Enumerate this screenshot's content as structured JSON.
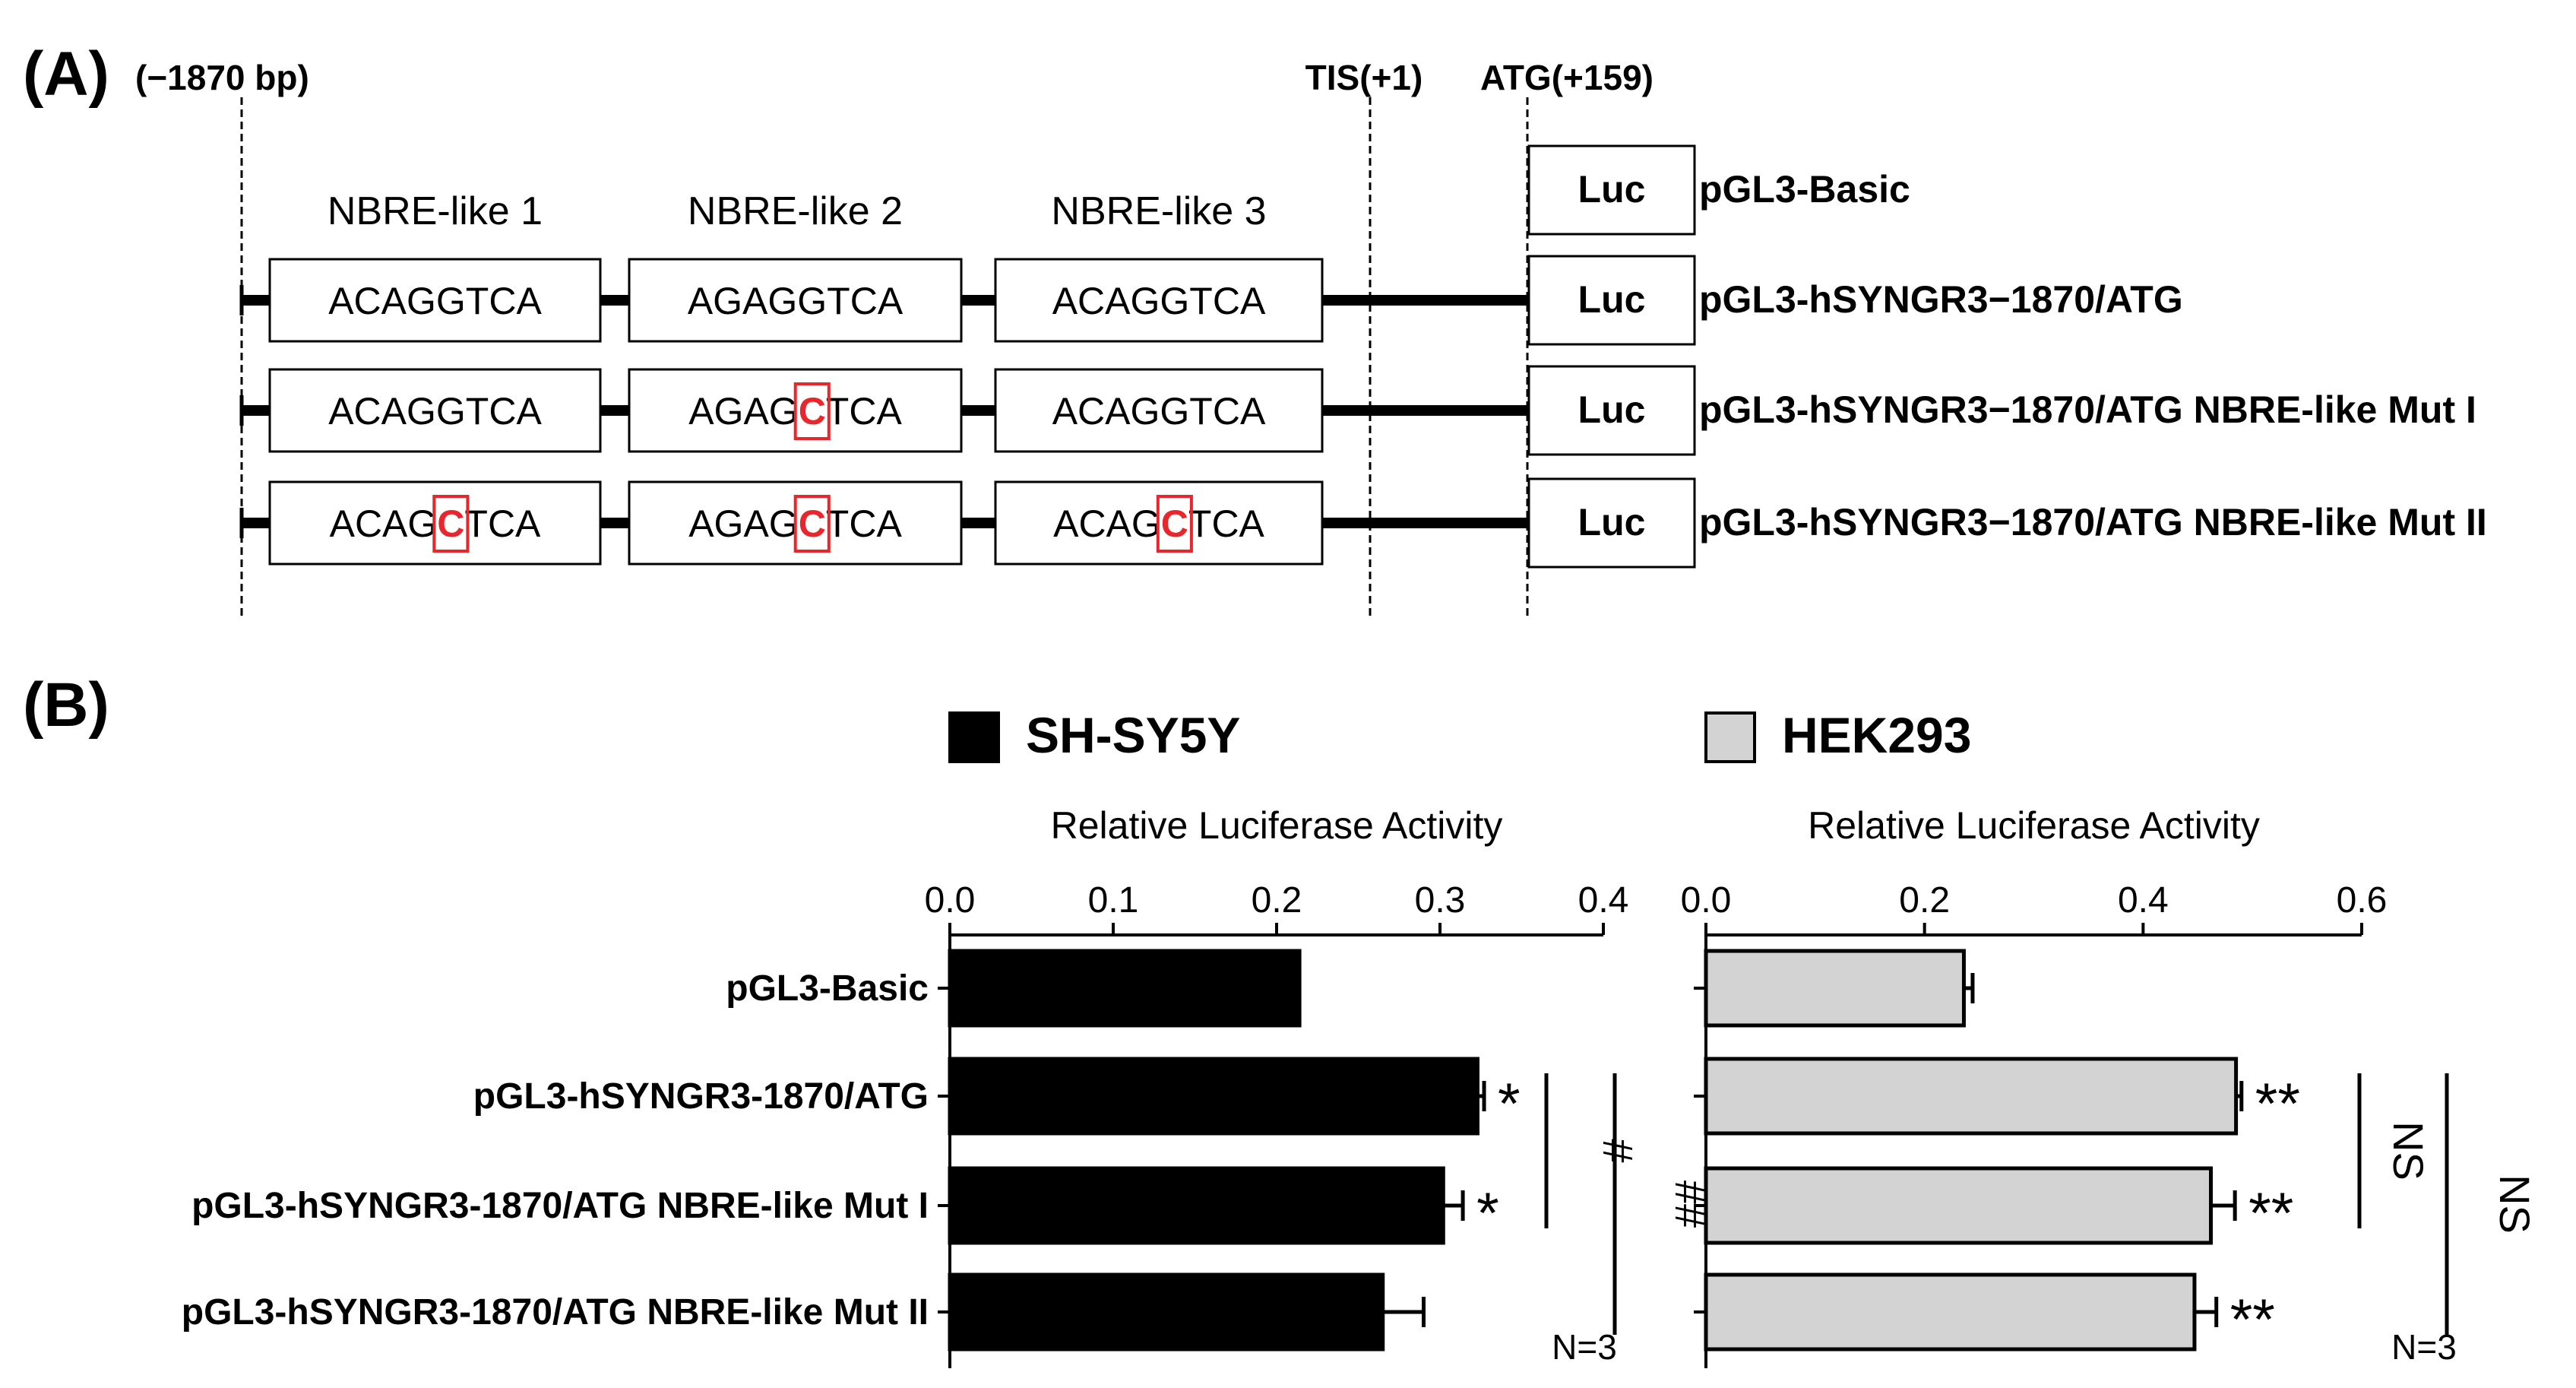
{
  "panel_a": {
    "label": "(A)",
    "pos_start": "(−1870 bp)",
    "tis": "TIS(+1)",
    "atg": "ATG(+159)",
    "nbre_headers": [
      "NBRE-like 1",
      "NBRE-like 2",
      "NBRE-like 3"
    ],
    "luc": "Luc",
    "constructs": [
      {
        "name": "pGL3-Basic",
        "sites": []
      },
      {
        "name": "pGL3-hSYNGR3−1870/ATG",
        "sites": [
          {
            "pre": "ACAGGTCA",
            "mut": "",
            "post": "",
            "mutated": false
          },
          {
            "pre": "AGAGGTCA",
            "mut": "",
            "post": "",
            "mutated": false
          },
          {
            "pre": "ACAGGTCA",
            "mut": "",
            "post": "",
            "mutated": false
          }
        ]
      },
      {
        "name": "pGL3-hSYNGR3−1870/ATG NBRE-like Mut I",
        "sites": [
          {
            "pre": "ACAGGTCA",
            "mut": "",
            "post": "",
            "mutated": false
          },
          {
            "pre": "AGAG",
            "mut": "C",
            "post": "TCA",
            "mutated": true
          },
          {
            "pre": "ACAGGTCA",
            "mut": "",
            "post": "",
            "mutated": false
          }
        ]
      },
      {
        "name": "pGL3-hSYNGR3−1870/ATG NBRE-like Mut II",
        "sites": [
          {
            "pre": "ACAG",
            "mut": "C",
            "post": "TCA",
            "mutated": true
          },
          {
            "pre": "AGAG",
            "mut": "C",
            "post": "TCA",
            "mutated": true
          },
          {
            "pre": "ACAG",
            "mut": "C",
            "post": "TCA",
            "mutated": true
          }
        ]
      }
    ],
    "mut_color": "#e8262b"
  },
  "panel_b": {
    "label": "(B)",
    "categories": [
      "pGL3-Basic",
      "pGL3-hSYNGR3-1870/ATG",
      "pGL3-hSYNGR3-1870/ATG NBRE-like Mut I",
      "pGL3-hSYNGR3-1870/ATG NBRE-like Mut II"
    ],
    "charts": [
      {
        "legend": "SH-SY5Y",
        "color": "#000000",
        "xlabel": "Relative Luciferase Activity",
        "ticks": [
          "0.0",
          "0.1",
          "0.2",
          "0.3",
          "0.4"
        ],
        "xlim": [
          0,
          0.4
        ],
        "values": [
          0.214,
          0.323,
          0.302,
          0.265
        ],
        "errors": [
          0.0,
          0.004,
          0.012,
          0.025
        ],
        "stars": [
          "",
          "*",
          "*",
          ""
        ],
        "brackets": [
          {
            "from": 1,
            "to": 2,
            "text": "#"
          },
          {
            "from": 1,
            "to": 3,
            "text": "##"
          }
        ],
        "n_label": "N=3"
      },
      {
        "legend": "HEK293",
        "color": "#d3d3d3",
        "xlabel": "Relative Luciferase Activity",
        "ticks": [
          "0.0",
          "0.2",
          "0.4",
          "0.6"
        ],
        "xlim": [
          0,
          0.6
        ],
        "values": [
          0.236,
          0.485,
          0.462,
          0.447
        ],
        "errors": [
          0.008,
          0.005,
          0.022,
          0.02
        ],
        "stars": [
          "",
          "**",
          "**",
          "**"
        ],
        "brackets": [
          {
            "from": 1,
            "to": 2,
            "text": "NS"
          },
          {
            "from": 1,
            "to": 3,
            "text": "NS"
          }
        ],
        "n_label": "N=3"
      }
    ]
  },
  "chart_data": [
    {
      "type": "bar",
      "title": "SH-SY5Y",
      "xlabel": "Relative Luciferase Activity",
      "categories": [
        "pGL3-Basic",
        "pGL3-hSYNGR3-1870/ATG",
        "pGL3-hSYNGR3-1870/ATG NBRE-like Mut I",
        "pGL3-hSYNGR3-1870/ATG NBRE-like Mut II"
      ],
      "values": [
        0.214,
        0.323,
        0.302,
        0.265
      ],
      "errors": [
        0.0,
        0.004,
        0.012,
        0.025
      ],
      "xlim": [
        0,
        0.4
      ],
      "orientation": "horizontal"
    },
    {
      "type": "bar",
      "title": "HEK293",
      "xlabel": "Relative Luciferase Activity",
      "categories": [
        "pGL3-Basic",
        "pGL3-hSYNGR3-1870/ATG",
        "pGL3-hSYNGR3-1870/ATG NBRE-like Mut I",
        "pGL3-hSYNGR3-1870/ATG NBRE-like Mut II"
      ],
      "values": [
        0.236,
        0.485,
        0.462,
        0.447
      ],
      "errors": [
        0.008,
        0.005,
        0.022,
        0.02
      ],
      "xlim": [
        0,
        0.6
      ],
      "orientation": "horizontal"
    }
  ]
}
